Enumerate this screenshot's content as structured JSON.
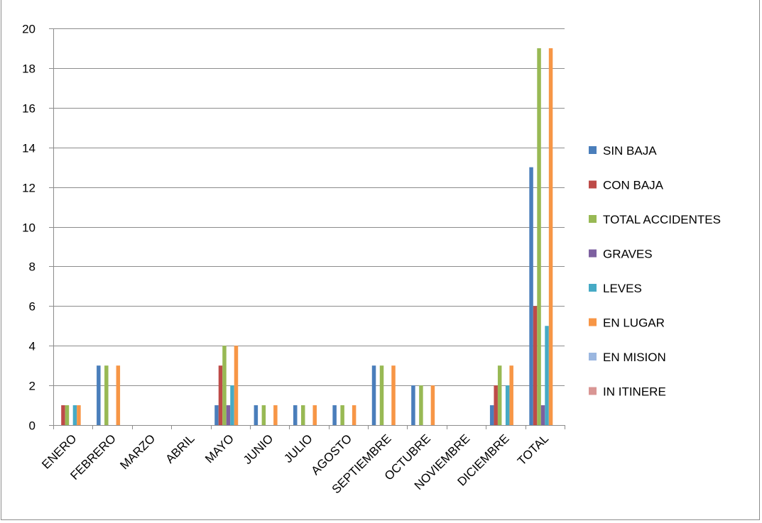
{
  "chart_data": {
    "type": "bar",
    "categories": [
      "ENERO",
      "FEBRERO",
      "MARZO",
      "ABRIL",
      "MAYO",
      "JUNIO",
      "JULIO",
      "AGOSTO",
      "SEPTIEMBRE",
      "OCTUBRE",
      "NOVIEMBRE",
      "DICIEMBRE",
      "TOTAL"
    ],
    "ylim": [
      0,
      20
    ],
    "yticks": [
      0,
      2,
      4,
      6,
      8,
      10,
      12,
      14,
      16,
      18,
      20
    ],
    "grid": true,
    "legend_position": "right",
    "series": [
      {
        "name": "SIN BAJA",
        "color": "#4a7ebb",
        "values": [
          0,
          3,
          0,
          0,
          1,
          1,
          1,
          1,
          3,
          2,
          0,
          1,
          13
        ]
      },
      {
        "name": "CON BAJA",
        "color": "#be4b48",
        "values": [
          1,
          0,
          0,
          0,
          3,
          0,
          0,
          0,
          0,
          0,
          0,
          2,
          6
        ]
      },
      {
        "name": "TOTAL ACCIDENTES",
        "color": "#98b954",
        "values": [
          1,
          3,
          0,
          0,
          4,
          1,
          1,
          1,
          3,
          2,
          0,
          3,
          19
        ]
      },
      {
        "name": "GRAVES",
        "color": "#7d60a0",
        "values": [
          0,
          0,
          0,
          0,
          1,
          0,
          0,
          0,
          0,
          0,
          0,
          0,
          1
        ]
      },
      {
        "name": "LEVES",
        "color": "#46aac5",
        "values": [
          1,
          0,
          0,
          0,
          2,
          0,
          0,
          0,
          0,
          0,
          0,
          2,
          5
        ]
      },
      {
        "name": "EN LUGAR",
        "color": "#f79646",
        "values": [
          1,
          3,
          0,
          0,
          4,
          1,
          1,
          1,
          3,
          2,
          0,
          3,
          19
        ]
      },
      {
        "name": "EN MISION",
        "color": "#9bb7e0",
        "values": [
          0,
          0,
          0,
          0,
          0,
          0,
          0,
          0,
          0,
          0,
          0,
          0,
          0
        ]
      },
      {
        "name": "IN ITINERE",
        "color": "#d99694",
        "values": [
          0,
          0,
          0,
          0,
          0,
          0,
          0,
          0,
          0,
          0,
          0,
          0,
          0
        ]
      }
    ]
  }
}
